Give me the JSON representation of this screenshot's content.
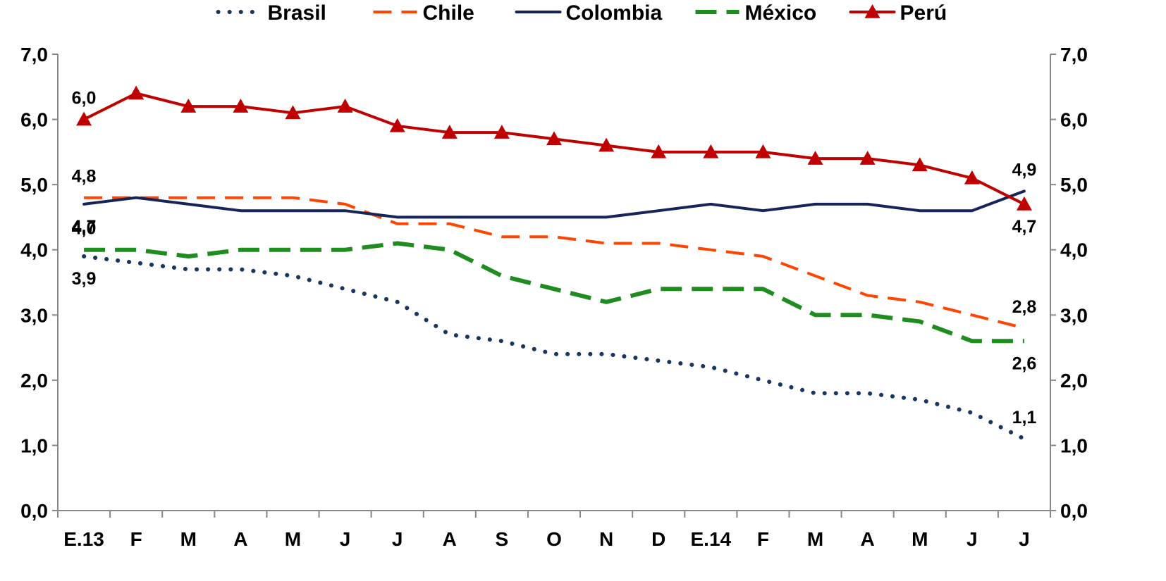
{
  "chart_data": {
    "type": "line",
    "categories": [
      "E.13",
      "F",
      "M",
      "A",
      "M",
      "J",
      "J",
      "A",
      "S",
      "O",
      "N",
      "D",
      "E.14",
      "F",
      "M",
      "A",
      "M",
      "J",
      "J"
    ],
    "y_ticks": [
      "0,0",
      "1,0",
      "2,0",
      "3,0",
      "4,0",
      "5,0",
      "6,0",
      "7,0"
    ],
    "ylim": [
      0,
      7
    ],
    "secondary_axis": true,
    "grid": false,
    "legend_position": "top",
    "series": [
      {
        "name": "Brasil",
        "color": "#17375E",
        "style": "dotted",
        "values": [
          3.9,
          3.8,
          3.7,
          3.7,
          3.6,
          3.4,
          3.2,
          2.7,
          2.6,
          2.4,
          2.4,
          2.3,
          2.2,
          2.0,
          1.8,
          1.8,
          1.7,
          1.5,
          1.1
        ]
      },
      {
        "name": "Chile",
        "color": "#FF4500",
        "style": "dashed",
        "values": [
          4.8,
          4.8,
          4.8,
          4.8,
          4.8,
          4.7,
          4.4,
          4.4,
          4.2,
          4.2,
          4.1,
          4.1,
          4.0,
          3.9,
          3.6,
          3.3,
          3.2,
          3.0,
          2.8
        ]
      },
      {
        "name": "Colombia",
        "color": "#16245C",
        "style": "solid",
        "values": [
          4.7,
          4.8,
          4.7,
          4.6,
          4.6,
          4.6,
          4.5,
          4.5,
          4.5,
          4.5,
          4.5,
          4.6,
          4.7,
          4.6,
          4.7,
          4.7,
          4.6,
          4.6,
          4.9
        ]
      },
      {
        "name": "México",
        "color": "#1E8C1E",
        "style": "dashed-thick",
        "values": [
          4.0,
          4.0,
          3.9,
          4.0,
          4.0,
          4.0,
          4.1,
          4.0,
          3.6,
          3.4,
          3.2,
          3.4,
          3.4,
          3.4,
          3.0,
          3.0,
          2.9,
          2.6,
          2.6
        ]
      },
      {
        "name": "Perú",
        "color": "#C00000",
        "style": "solid-triangle",
        "values": [
          6.0,
          6.4,
          6.2,
          6.2,
          6.1,
          6.2,
          5.9,
          5.8,
          5.8,
          5.7,
          5.6,
          5.5,
          5.5,
          5.5,
          5.4,
          5.4,
          5.3,
          5.1,
          4.7
        ]
      }
    ],
    "data_labels": [
      {
        "text": "6,0",
        "index": 0,
        "value": 6.0,
        "anchor": "above"
      },
      {
        "text": "4,8",
        "index": 0,
        "value": 4.8,
        "anchor": "above"
      },
      {
        "text": "4,7",
        "index": 0,
        "value": 4.7,
        "anchor": "below"
      },
      {
        "text": "4,0",
        "index": 0,
        "value": 4.0,
        "anchor": "above"
      },
      {
        "text": "3,9",
        "index": 0,
        "value": 3.9,
        "anchor": "below"
      },
      {
        "text": "4,9",
        "index": 18,
        "value": 4.9,
        "anchor": "above"
      },
      {
        "text": "4,7",
        "index": 18,
        "value": 4.7,
        "anchor": "below"
      },
      {
        "text": "2,8",
        "index": 18,
        "value": 2.8,
        "anchor": "above"
      },
      {
        "text": "2,6",
        "index": 18,
        "value": 2.6,
        "anchor": "below"
      },
      {
        "text": "1,1",
        "index": 18,
        "value": 1.1,
        "anchor": "above"
      }
    ]
  }
}
